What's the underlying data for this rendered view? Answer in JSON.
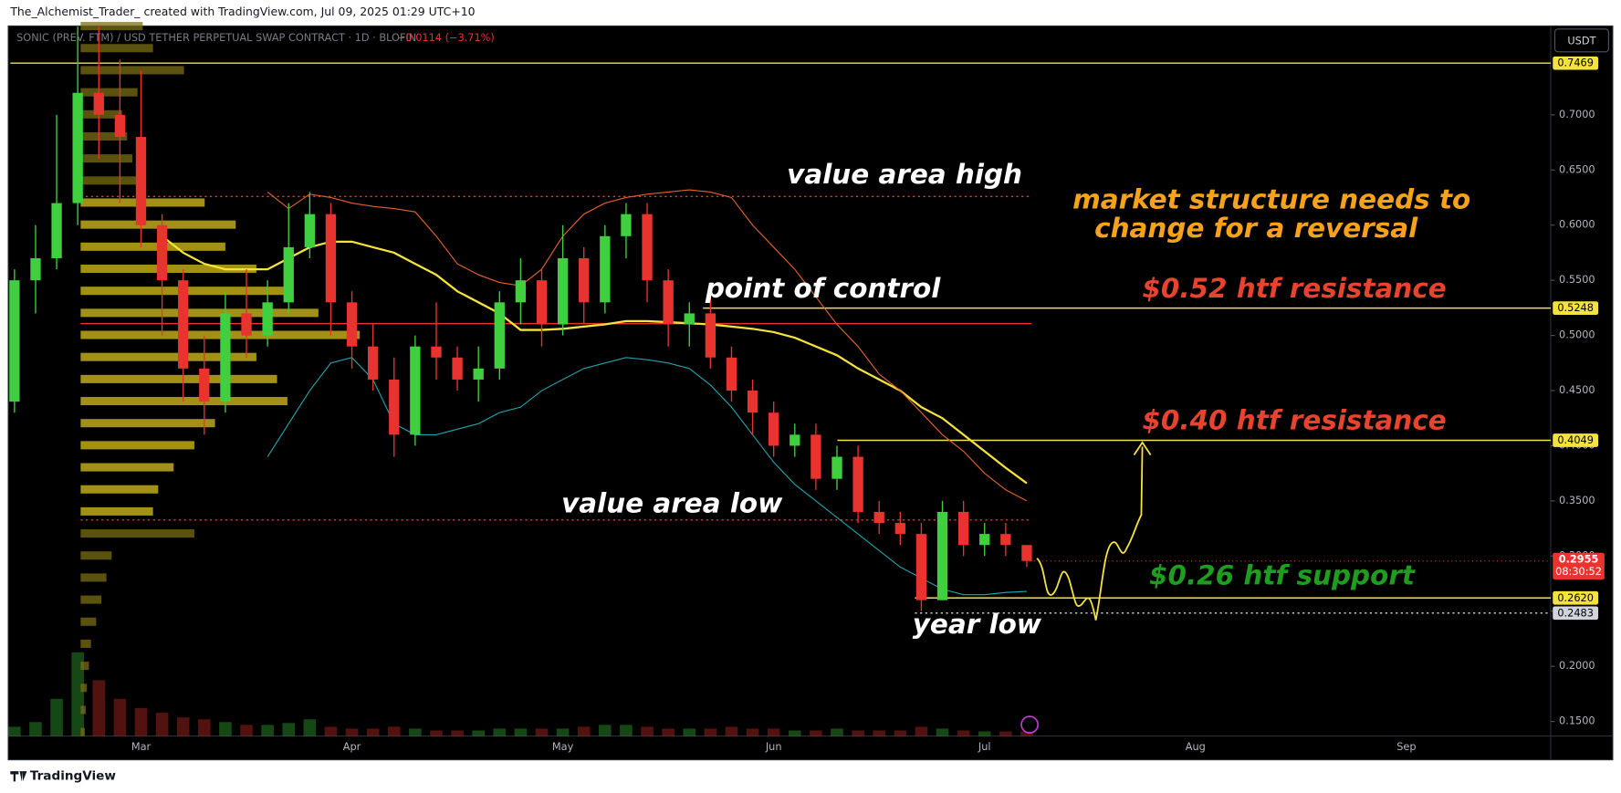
{
  "header": {
    "credit": "The_Alchemist_Trader_ created with TradingView.com, Jul 09, 2025 01:29 UTC+10",
    "symbol": "SONIC (PREV. FTM) / USD TETHER PERPETUAL SWAP CONTRACT · 1D · BLOFIN",
    "change": "−0.0114 (−3.71%)",
    "currency": "USDT"
  },
  "footer": {
    "brand": "TradingView"
  },
  "chart_data": {
    "type": "candlestick",
    "categories": [
      null,
      null,
      null,
      null,
      null,
      null,
      "Mar",
      null,
      null,
      null,
      null,
      null,
      null,
      null,
      null,
      null,
      "Apr",
      null,
      null,
      null,
      null,
      null,
      null,
      null,
      null,
      null,
      "May",
      null,
      null,
      null,
      null,
      null,
      null,
      null,
      null,
      null,
      "Jun",
      null,
      null,
      null,
      null,
      null,
      null,
      null,
      null,
      null,
      "Jul",
      null,
      null,
      null,
      null,
      null,
      null,
      null,
      null,
      null,
      "Aug",
      null,
      null,
      null,
      null,
      null,
      null,
      null,
      null,
      null,
      "Sep",
      null,
      null,
      null,
      null,
      null,
      null
    ],
    "open": [
      0.44,
      0.55,
      0.57,
      0.62,
      0.72,
      0.7,
      0.68,
      0.6,
      0.55,
      0.47,
      0.44,
      0.52,
      0.5,
      0.53,
      0.58,
      0.61,
      0.53,
      0.49,
      0.46,
      0.41,
      0.49,
      0.48,
      0.46,
      0.47,
      0.53,
      0.55,
      0.51,
      0.57,
      0.53,
      0.59,
      0.61,
      0.55,
      0.51,
      0.52,
      0.48,
      0.45,
      0.43,
      0.4,
      0.41,
      0.37,
      0.39,
      0.34,
      0.33,
      0.32,
      0.26,
      0.34,
      0.31,
      0.32,
      0.31,
      null,
      null,
      null,
      null,
      null,
      null,
      null,
      null,
      null,
      null,
      null,
      null,
      null,
      null,
      null,
      null,
      null,
      null,
      null,
      null,
      null,
      null,
      null,
      null
    ],
    "high": [
      0.56,
      0.6,
      0.7,
      0.78,
      0.78,
      0.75,
      0.74,
      0.61,
      0.56,
      0.5,
      0.54,
      0.56,
      0.55,
      0.62,
      0.63,
      0.62,
      0.54,
      0.51,
      0.48,
      0.5,
      0.53,
      0.49,
      0.49,
      0.54,
      0.57,
      0.56,
      0.6,
      0.58,
      0.6,
      0.62,
      0.62,
      0.56,
      0.53,
      0.54,
      0.49,
      0.46,
      0.44,
      0.42,
      0.42,
      0.4,
      0.4,
      0.35,
      0.34,
      0.33,
      0.35,
      0.35,
      0.33,
      0.33,
      0.31,
      null,
      null,
      null,
      null,
      null,
      null,
      null,
      null,
      null,
      null,
      null,
      null,
      null,
      null,
      null,
      null,
      null,
      null,
      null,
      null,
      null,
      null,
      null,
      null
    ],
    "low": [
      0.43,
      0.52,
      0.56,
      0.6,
      0.66,
      0.62,
      0.58,
      0.5,
      0.44,
      0.41,
      0.43,
      0.48,
      0.49,
      0.52,
      0.57,
      0.5,
      0.47,
      0.45,
      0.39,
      0.4,
      0.46,
      0.45,
      0.44,
      0.46,
      0.51,
      0.49,
      0.5,
      0.51,
      0.52,
      0.57,
      0.53,
      0.49,
      0.49,
      0.47,
      0.44,
      0.41,
      0.39,
      0.39,
      0.36,
      0.36,
      0.33,
      0.32,
      0.31,
      0.25,
      0.26,
      0.3,
      0.3,
      0.3,
      0.29,
      null,
      null,
      null,
      null,
      null,
      null,
      null,
      null,
      null,
      null,
      null,
      null,
      null,
      null,
      null,
      null,
      null,
      null,
      null,
      null,
      null,
      null,
      null,
      null
    ],
    "close": [
      0.55,
      0.57,
      0.62,
      0.72,
      0.7,
      0.68,
      0.6,
      0.55,
      0.47,
      0.44,
      0.52,
      0.5,
      0.53,
      0.58,
      0.61,
      0.53,
      0.49,
      0.46,
      0.41,
      0.49,
      0.48,
      0.46,
      0.47,
      0.53,
      0.55,
      0.51,
      0.57,
      0.53,
      0.59,
      0.61,
      0.55,
      0.51,
      0.52,
      0.48,
      0.45,
      0.43,
      0.4,
      0.41,
      0.37,
      0.39,
      0.34,
      0.33,
      0.32,
      0.26,
      0.34,
      0.31,
      0.32,
      0.31,
      0.2955,
      null,
      null,
      null,
      null,
      null,
      null,
      null,
      null,
      null,
      null,
      null,
      null,
      null,
      null,
      null,
      null,
      null,
      null,
      null,
      null,
      null,
      null,
      null,
      null
    ],
    "volume": [
      10,
      15,
      40,
      90,
      60,
      40,
      30,
      25,
      20,
      18,
      15,
      12,
      12,
      14,
      18,
      10,
      8,
      8,
      10,
      8,
      6,
      6,
      6,
      8,
      8,
      8,
      8,
      10,
      12,
      12,
      10,
      8,
      8,
      8,
      10,
      8,
      8,
      6,
      6,
      8,
      6,
      6,
      6,
      10,
      8,
      6,
      5,
      5,
      5,
      null,
      null,
      null,
      null,
      null,
      null,
      null,
      null,
      null,
      null,
      null,
      null,
      null,
      null,
      null,
      null,
      null,
      null,
      null,
      null,
      null,
      null,
      null,
      null
    ],
    "up_color": "#3fcf3f",
    "down_color": "#e8332f",
    "indicators": [
      {
        "color": "#f5e33b",
        "values": [
          null,
          null,
          null,
          null,
          null,
          null,
          null,
          0.59,
          0.575,
          0.565,
          0.56,
          0.56,
          0.56,
          0.57,
          0.58,
          0.585,
          0.585,
          0.58,
          0.575,
          0.565,
          0.555,
          0.54,
          0.53,
          0.52,
          0.505,
          0.505,
          0.506,
          0.508,
          0.51,
          0.513,
          0.513,
          0.512,
          0.511,
          0.51,
          0.508,
          0.506,
          0.503,
          0.498,
          0.49,
          0.482,
          0.47,
          0.46,
          0.45,
          0.435,
          0.425,
          0.41,
          0.395,
          0.38,
          0.366,
          null,
          null,
          null,
          null,
          null,
          null,
          null,
          null,
          null,
          null,
          null,
          null,
          null,
          null,
          null,
          null,
          null,
          null,
          null,
          null,
          null,
          null,
          null,
          null
        ]
      },
      {
        "color": "#e0622d",
        "values": [
          null,
          null,
          null,
          null,
          null,
          null,
          null,
          null,
          null,
          null,
          null,
          null,
          0.63,
          0.615,
          0.628,
          0.625,
          0.62,
          0.617,
          0.615,
          0.612,
          0.59,
          0.565,
          0.555,
          0.548,
          0.545,
          0.56,
          0.59,
          0.61,
          0.62,
          0.625,
          0.628,
          0.63,
          0.632,
          0.63,
          0.625,
          0.6,
          0.58,
          0.56,
          0.535,
          0.51,
          0.49,
          0.465,
          0.45,
          0.43,
          0.41,
          0.395,
          0.375,
          0.36,
          0.35,
          null,
          null,
          null,
          null,
          null,
          null,
          null,
          null,
          null,
          null,
          null,
          null,
          null,
          null,
          null,
          null,
          null,
          null,
          null,
          null,
          null,
          null,
          null,
          null
        ]
      },
      {
        "color": "#26a0a8",
        "values": [
          null,
          null,
          null,
          null,
          null,
          null,
          null,
          null,
          null,
          null,
          null,
          null,
          0.39,
          0.42,
          0.45,
          0.475,
          0.48,
          0.46,
          0.42,
          0.41,
          0.41,
          0.415,
          0.42,
          0.43,
          0.435,
          0.45,
          0.46,
          0.47,
          0.475,
          0.48,
          0.478,
          0.475,
          0.47,
          0.455,
          0.435,
          0.41,
          0.385,
          0.365,
          0.35,
          0.335,
          0.32,
          0.305,
          0.29,
          0.28,
          0.27,
          0.265,
          0.265,
          0.267,
          0.268,
          null,
          null,
          null,
          null,
          null,
          null,
          null,
          null,
          null,
          null,
          null,
          null,
          null,
          null,
          null,
          null,
          null,
          null,
          null,
          null,
          null,
          null,
          null,
          null
        ]
      }
    ],
    "volume_profile": {
      "prices": [
        0.78,
        0.76,
        0.74,
        0.72,
        0.7,
        0.68,
        0.66,
        0.64,
        0.62,
        0.6,
        0.58,
        0.56,
        0.54,
        0.52,
        0.5,
        0.48,
        0.46,
        0.44,
        0.42,
        0.4,
        0.38,
        0.36,
        0.34,
        0.32,
        0.3,
        0.28,
        0.26,
        0.24,
        0.22,
        0.2,
        0.18,
        0.16,
        0.14
      ],
      "volumes": [
        60,
        70,
        100,
        55,
        40,
        45,
        50,
        60,
        120,
        150,
        140,
        170,
        200,
        230,
        270,
        170,
        190,
        200,
        130,
        110,
        90,
        75,
        70,
        110,
        30,
        25,
        20,
        15,
        10,
        8,
        6,
        5,
        4
      ],
      "color": "#d9c21f",
      "outside_color": "#7a6d14"
    },
    "value_area": {
      "high": 0.626,
      "low": 0.3327,
      "poc": 0.5107
    },
    "levels": [
      {
        "value": 0.7469,
        "label": "0.7469",
        "color": "#f5e33b",
        "style": "solid"
      },
      {
        "value": 0.626,
        "color": "#e8332f",
        "style": "dotted"
      },
      {
        "value": 0.5248,
        "label": "0.5248",
        "color": "#f5e33b",
        "style": "solid"
      },
      {
        "value": 0.5107,
        "color": "#e8332f",
        "style": "solid"
      },
      {
        "value": 0.4049,
        "label": "0.4049",
        "color": "#f5e33b",
        "style": "solid"
      },
      {
        "value": 0.3327,
        "color": "#e8332f",
        "style": "dotted"
      },
      {
        "value": 0.262,
        "label": "0.2620",
        "color": "#f5e33b",
        "style": "solid"
      },
      {
        "value": 0.2483,
        "label": "0.2483",
        "color": "#d1d4dc",
        "style": "dotted"
      }
    ],
    "last_price": {
      "value": 0.2955,
      "label": "0.2955",
      "countdown": "08:30:52",
      "color": "#e8332f"
    },
    "ylim": [
      0.1368,
      0.7806
    ],
    "yticks": [
      {
        "value": 0.15,
        "label": "0.1500"
      },
      {
        "value": 0.2,
        "label": "0.2000"
      },
      {
        "value": 0.25,
        "label": "0.2500"
      },
      {
        "value": 0.3,
        "label": "0.3000"
      },
      {
        "value": 0.35,
        "label": "0.3500"
      },
      {
        "value": 0.4,
        "label": "0.4000"
      },
      {
        "value": 0.45,
        "label": "0.4500"
      },
      {
        "value": 0.5,
        "label": "0.5000"
      },
      {
        "value": 0.55,
        "label": "0.5500"
      },
      {
        "value": 0.6,
        "label": "0.6000"
      },
      {
        "value": 0.65,
        "label": "0.6500"
      },
      {
        "value": 0.7,
        "label": "0.7000"
      }
    ],
    "grid": false,
    "annotations": [
      {
        "text": "value area high",
        "color": "#ffffff"
      },
      {
        "text": "point of control",
        "color": "#ffffff"
      },
      {
        "text": "value area low",
        "color": "#ffffff"
      },
      {
        "text": "year low",
        "color": "#ffffff"
      },
      {
        "text": "market structure needs to",
        "color": "#f7a21b"
      },
      {
        "text": "change for a reversal",
        "color": "#f7a21b"
      },
      {
        "text": "$0.52 htf resistance",
        "color": "#e8432f"
      },
      {
        "text": "$0.40 htf resistance",
        "color": "#e8432f"
      },
      {
        "text": "$0.26 htf support",
        "color": "#1f9d1f"
      }
    ]
  }
}
